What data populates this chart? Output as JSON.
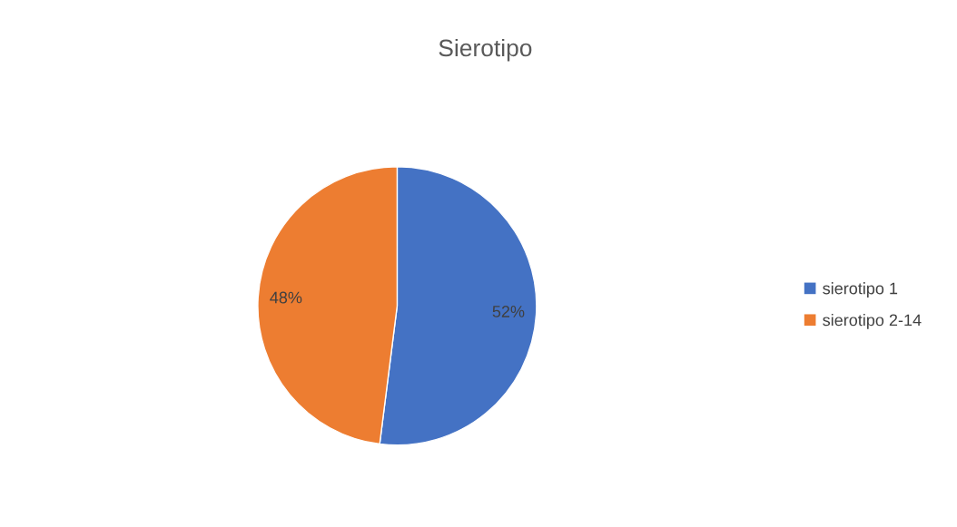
{
  "chart_data": {
    "type": "pie",
    "title": "Sierotipo",
    "categories": [
      "sierotipo 1",
      "sierotipo 2-14"
    ],
    "values": [
      52,
      48
    ],
    "colors": [
      "#4472c4",
      "#ed7d31"
    ],
    "value_labels": [
      "52%",
      "48%"
    ],
    "legend": "right"
  }
}
